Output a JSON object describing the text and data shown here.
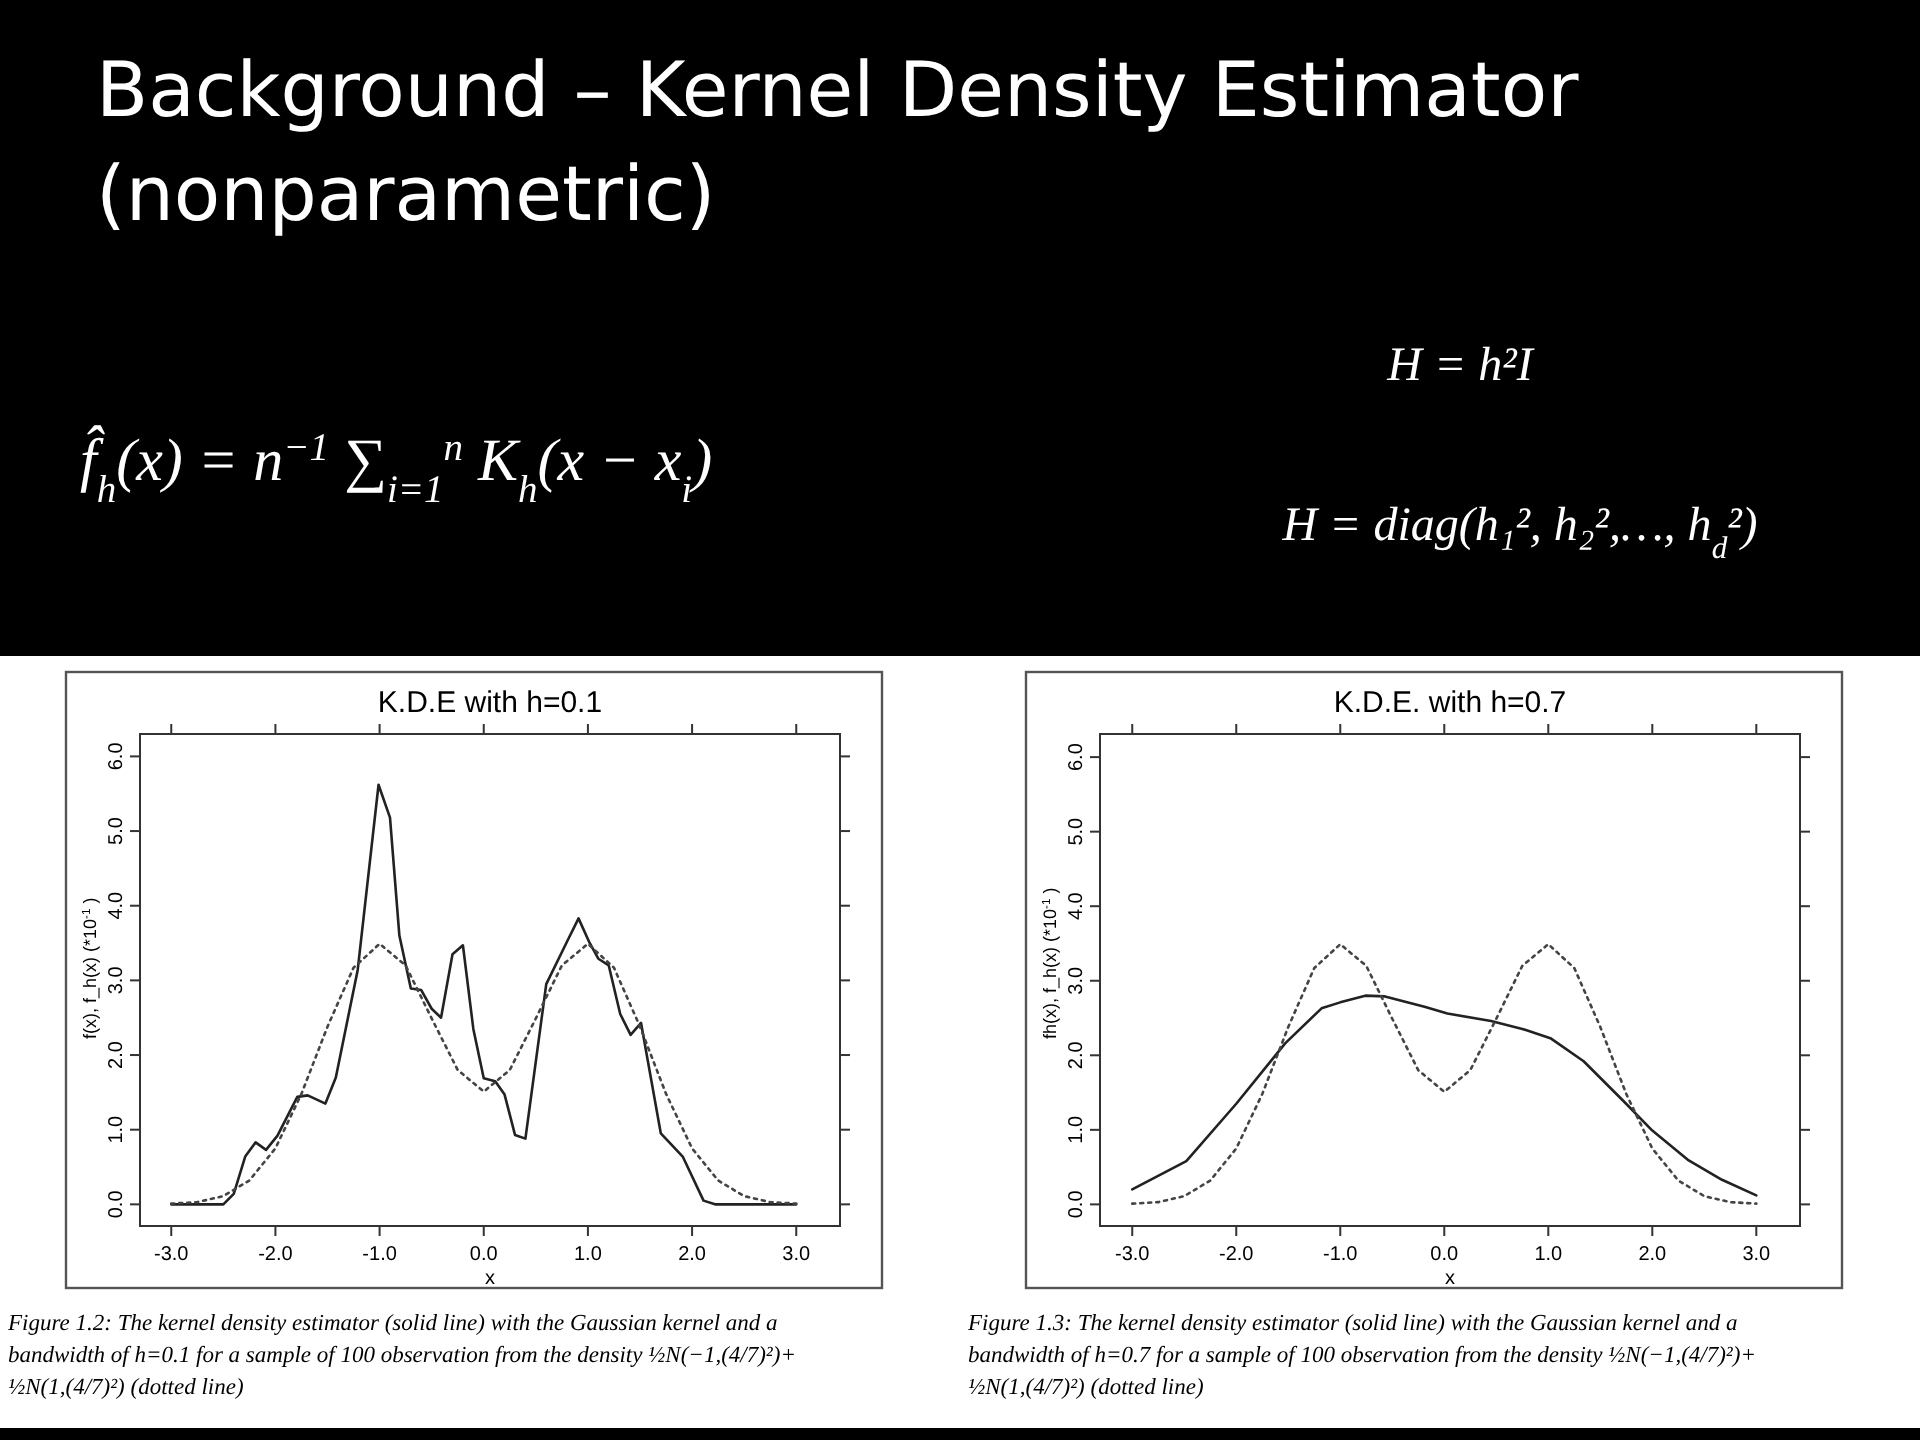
{
  "chart_data": [
    {
      "type": "other",
      "title": "Background – Kernel Density Estimator (nonparametric)",
      "annotations": [
        "f̂$_{h}$(x) = n$^{−1}$ ∑$_{i=1}$$^{n}$ K$_{h}$(x − x$_{i}$)",
        "H =  h²I",
        "H = diag(h₁², h₂²,…, h$_{d}$²)"
      ]
    },
    {
      "type": "line",
      "title": "K.D.E with h=0.1",
      "xlabel": "x",
      "ylabel": "f(x), f_h(x)      (*10$^{-1}$ )",
      "xlim": [
        -3.3,
        3.42
      ],
      "ylim": [
        -0.29,
        6.3
      ],
      "xticks": [
        {
          "value": -3,
          "label": "-3.0"
        },
        {
          "value": -2,
          "label": "-2.0"
        },
        {
          "value": -1,
          "label": "-1.0"
        },
        {
          "value": 0,
          "label": "0.0"
        },
        {
          "value": 1,
          "label": "1.0"
        },
        {
          "value": 2,
          "label": "2.0"
        },
        {
          "value": 3,
          "label": "3.0"
        }
      ],
      "yticks": [
        {
          "value": 0,
          "label": "0.0"
        },
        {
          "value": 1,
          "label": "1.0"
        },
        {
          "value": 2,
          "label": "2.0"
        },
        {
          "value": 3,
          "label": "3.0"
        },
        {
          "value": 4,
          "label": "4.0"
        },
        {
          "value": 5,
          "label": "5.0"
        },
        {
          "value": 6,
          "label": "6.0"
        }
      ],
      "grid": false,
      "marker": "none",
      "series": [
        {
          "color": "#222222",
          "line_style": "solid",
          "x": [
            -3,
            -2.5,
            -2.4,
            -2.29,
            -2.19,
            -2.09,
            -1.98,
            -1.79,
            -1.69,
            -1.52,
            -1.42,
            -1.21,
            -1.01,
            -0.9,
            -0.81,
            -0.7,
            -0.6,
            -0.5,
            -0.41,
            -0.3,
            -0.2,
            -0.1,
            0,
            0.11,
            0.2,
            0.3,
            0.4,
            0.6,
            0.8,
            0.91,
            1.01,
            1.1,
            1.2,
            1.31,
            1.41,
            1.51,
            1.7,
            1.91,
            2.11,
            2.22,
            3
          ],
          "values": [
            0,
            0,
            0.14,
            0.64,
            0.83,
            0.73,
            0.92,
            1.44,
            1.46,
            1.35,
            1.7,
            3.14,
            5.62,
            5.18,
            3.6,
            2.89,
            2.87,
            2.62,
            2.5,
            3.35,
            3.47,
            2.35,
            1.69,
            1.65,
            1.47,
            0.93,
            0.88,
            2.95,
            3.52,
            3.83,
            3.52,
            3.29,
            3.2,
            2.55,
            2.27,
            2.43,
            0.95,
            0.64,
            0.05,
            0,
            0
          ]
        },
        {
          "color": "#444444",
          "line_style": "dotted",
          "x": [
            -3,
            -2.75,
            -2.5,
            -2.25,
            -2,
            -1.75,
            -1.5,
            -1.25,
            -1,
            -0.75,
            -0.5,
            -0.25,
            0,
            0.25,
            0.5,
            0.75,
            1,
            1.25,
            1.5,
            1.75,
            2,
            2.25,
            2.5,
            2.75,
            3
          ],
          "values": [
            0.01,
            0.03,
            0.11,
            0.32,
            0.75,
            1.48,
            2.38,
            3.17,
            3.49,
            3.2,
            2.49,
            1.8,
            1.51,
            1.8,
            2.49,
            3.2,
            3.49,
            3.17,
            2.38,
            1.48,
            0.75,
            0.32,
            0.11,
            0.03,
            0.01
          ]
        }
      ],
      "annotations": [
        "Figure 1.2: The kernel density estimator (solid line) with the Gaussian kernel and a bandwidth of h=0.1 for a sample of 100 observation from the density ½N(−1,(4/7)²)+ ½N(1,(4/7)²) (dotted line)"
      ]
    },
    {
      "type": "line",
      "title": "K.D.E. with h=0.7",
      "xlabel": "x",
      "ylabel": "fh(x), f_h(x)      (*10$^{-1}$ )",
      "xlim": [
        -3.31,
        3.42
      ],
      "ylim": [
        -0.29,
        6.31
      ],
      "xticks": [
        {
          "value": -3,
          "label": "-3.0"
        },
        {
          "value": -2,
          "label": "-2.0"
        },
        {
          "value": -1,
          "label": "-1.0"
        },
        {
          "value": 0,
          "label": "0.0"
        },
        {
          "value": 1,
          "label": "1.0"
        },
        {
          "value": 2,
          "label": "2.0"
        },
        {
          "value": 3,
          "label": "3.0"
        }
      ],
      "yticks": [
        {
          "value": 0,
          "label": "0.0"
        },
        {
          "value": 1,
          "label": "1.0"
        },
        {
          "value": 2,
          "label": "2.0"
        },
        {
          "value": 3,
          "label": "3.0"
        },
        {
          "value": 4,
          "label": "4.0"
        },
        {
          "value": 5,
          "label": "5.0"
        },
        {
          "value": 6,
          "label": "6.0"
        }
      ],
      "grid": false,
      "marker": "none",
      "series": [
        {
          "color": "#222222",
          "line_style": "solid",
          "x": [
            -3,
            -2.48,
            -2,
            -1.53,
            -1.18,
            -1,
            -0.76,
            -0.57,
            -0.19,
            0.03,
            0.45,
            0.76,
            1.02,
            1.34,
            1.72,
            2,
            2.35,
            2.67,
            3
          ],
          "values": [
            0.2,
            0.58,
            1.35,
            2.16,
            2.63,
            2.71,
            2.8,
            2.79,
            2.65,
            2.56,
            2.46,
            2.35,
            2.23,
            1.92,
            1.39,
            0.99,
            0.59,
            0.33,
            0.12
          ]
        },
        {
          "color": "#444444",
          "line_style": "dotted",
          "x": [
            -3,
            -2.75,
            -2.5,
            -2.25,
            -2,
            -1.75,
            -1.5,
            -1.25,
            -1,
            -0.75,
            -0.5,
            -0.25,
            0,
            0.25,
            0.5,
            0.75,
            1,
            1.25,
            1.5,
            1.75,
            2,
            2.25,
            2.5,
            2.75,
            3
          ],
          "values": [
            0.01,
            0.03,
            0.11,
            0.32,
            0.75,
            1.48,
            2.38,
            3.17,
            3.49,
            3.2,
            2.49,
            1.8,
            1.51,
            1.8,
            2.49,
            3.2,
            3.49,
            3.17,
            2.38,
            1.48,
            0.75,
            0.32,
            0.11,
            0.03,
            0.01
          ]
        }
      ],
      "annotations": [
        "Figure 1.3: The kernel density estimator (solid line) with the Gaussian kernel and a bandwidth of h=0.7 for a sample of 100 observation from the density ½N(−1,(4/7)²)+ ½N(1,(4/7)²) (dotted line)"
      ]
    }
  ]
}
